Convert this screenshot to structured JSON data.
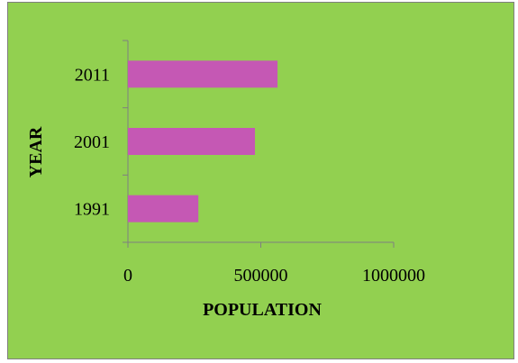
{
  "chart_data": {
    "type": "bar",
    "orientation": "horizontal",
    "categories": [
      "1991",
      "2001",
      "2011"
    ],
    "values": [
      265000,
      478000,
      563000
    ],
    "xlabel": "POPULATION",
    "ylabel": "YEAR",
    "xlim": [
      0,
      1000000
    ],
    "xticks": [
      "0",
      "500000",
      "1000000"
    ],
    "grid": false,
    "legend": "none",
    "colors": {
      "background": "#92d050",
      "bar": "#c558b4",
      "axis": "#7f7f7f"
    }
  }
}
